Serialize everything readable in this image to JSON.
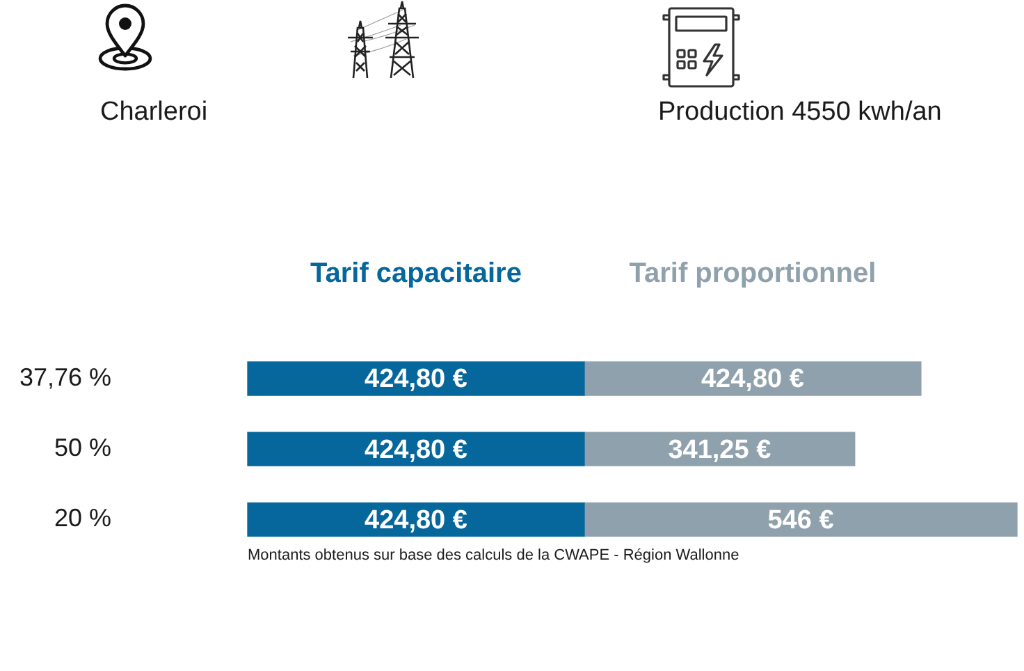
{
  "chart_data": {
    "type": "bar",
    "orientation": "horizontal",
    "stacked": true,
    "categories": [
      "37,76 %",
      "50 %",
      "20 %"
    ],
    "series": [
      {
        "name": "Tarif capacitaire",
        "color": "#05679b",
        "values": [
          424.8,
          424.8,
          424.8
        ],
        "value_labels": [
          "424,80 €",
          "424,80 €",
          "424,80 €"
        ]
      },
      {
        "name": "Tarif proportionnel",
        "color": "#8fa1ad",
        "values": [
          424.8,
          341.25,
          546
        ],
        "value_labels": [
          "424,80 €",
          "341,25 €",
          "546 €"
        ]
      }
    ],
    "annotations": [
      "Charleroi",
      "Production 4550 kwh/an",
      "Montants obtenus sur base des calculs de la CWAPE - Région Wallonne"
    ]
  }
}
